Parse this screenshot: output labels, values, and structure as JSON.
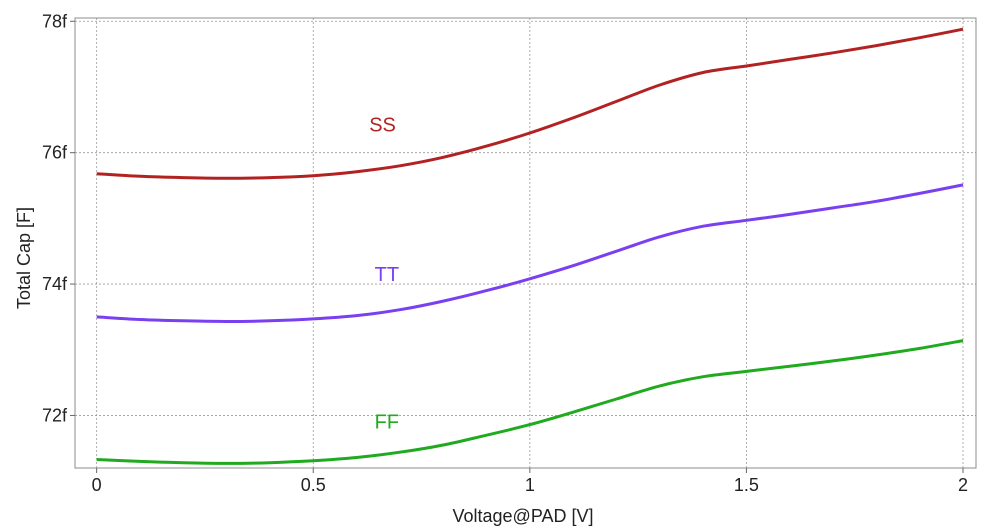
{
  "chart_data": {
    "type": "line",
    "xlabel": "Voltage@PAD [V]",
    "ylabel": "Total Cap [F]",
    "xlim": [
      -0.05,
      2.03
    ],
    "ylim": [
      71.2,
      78.05
    ],
    "x_ticks": [
      {
        "value": 0,
        "label": "0"
      },
      {
        "value": 0.5,
        "label": "0.5"
      },
      {
        "value": 1,
        "label": "1"
      },
      {
        "value": 1.5,
        "label": "1.5"
      },
      {
        "value": 2,
        "label": "2"
      }
    ],
    "y_ticks": [
      {
        "value": 72,
        "label": "72f"
      },
      {
        "value": 74,
        "label": "74f"
      },
      {
        "value": 76,
        "label": "76f"
      },
      {
        "value": 78,
        "label": "78f"
      }
    ],
    "grid": true,
    "series": [
      {
        "name": "SS",
        "color": "#b22222",
        "label_at": [
          0.66,
          76.32
        ],
        "x": [
          0,
          0.1,
          0.2,
          0.3,
          0.4,
          0.5,
          0.6,
          0.7,
          0.8,
          0.9,
          1.0,
          1.1,
          1.2,
          1.3,
          1.4,
          1.5,
          1.6,
          1.7,
          1.8,
          1.9,
          2.0
        ],
        "y": [
          75.68,
          75.64,
          75.62,
          75.61,
          75.62,
          75.65,
          75.71,
          75.8,
          75.93,
          76.1,
          76.3,
          76.53,
          76.78,
          77.03,
          77.22,
          77.32,
          77.42,
          77.52,
          77.63,
          77.75,
          77.88
        ]
      },
      {
        "name": "TT",
        "color": "#7b3ff2",
        "label_at": [
          0.67,
          74.05
        ],
        "x": [
          0,
          0.1,
          0.2,
          0.3,
          0.4,
          0.5,
          0.6,
          0.7,
          0.8,
          0.9,
          1.0,
          1.1,
          1.2,
          1.3,
          1.4,
          1.5,
          1.6,
          1.7,
          1.8,
          1.9,
          2.0
        ],
        "y": [
          73.5,
          73.46,
          73.44,
          73.43,
          73.44,
          73.47,
          73.52,
          73.61,
          73.74,
          73.9,
          74.08,
          74.28,
          74.5,
          74.72,
          74.88,
          74.97,
          75.06,
          75.16,
          75.26,
          75.38,
          75.51
        ]
      },
      {
        "name": "FF",
        "color": "#1faa1f",
        "label_at": [
          0.67,
          71.8
        ],
        "x": [
          0,
          0.1,
          0.2,
          0.3,
          0.4,
          0.5,
          0.6,
          0.7,
          0.8,
          0.9,
          1.0,
          1.1,
          1.2,
          1.3,
          1.4,
          1.5,
          1.6,
          1.7,
          1.8,
          1.9,
          2.0
        ],
        "y": [
          71.33,
          71.3,
          71.28,
          71.27,
          71.28,
          71.31,
          71.36,
          71.44,
          71.55,
          71.7,
          71.86,
          72.05,
          72.25,
          72.45,
          72.59,
          72.67,
          72.75,
          72.83,
          72.92,
          73.02,
          73.14
        ]
      }
    ]
  }
}
